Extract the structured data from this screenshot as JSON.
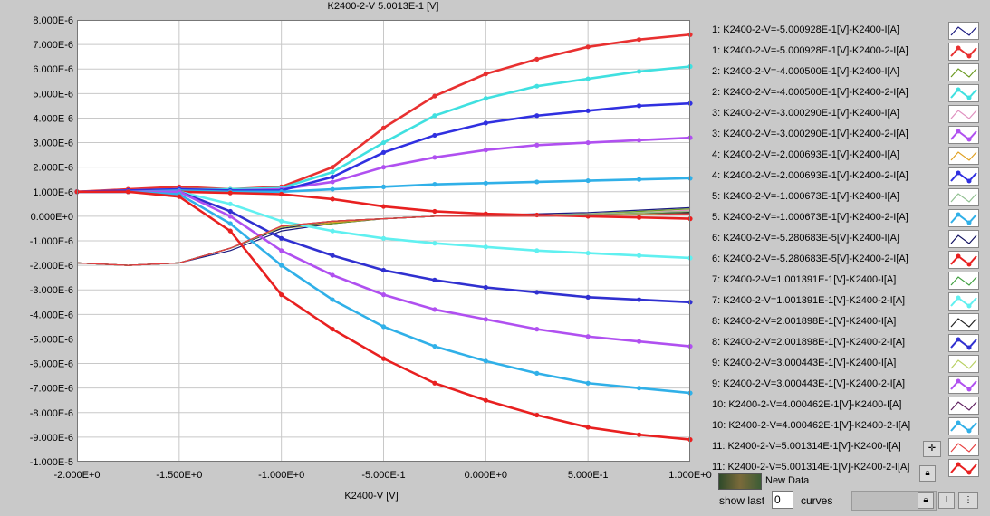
{
  "chart_data": {
    "type": "line",
    "title": "K2400-2-V 5.0013E-1 [V]",
    "xlabel": "K2400-V  [V]",
    "ylabel": "",
    "xlim": [
      -2.0,
      1.0
    ],
    "ylim": [
      -1e-05,
      8e-06
    ],
    "grid": true,
    "legend_position": "right",
    "x_ticks": [
      "-2.000E+0",
      "-1.500E+0",
      "-1.000E+0",
      "-5.000E-1",
      "0.000E+0",
      "5.000E-1",
      "1.000E+0"
    ],
    "y_ticks": [
      "8.000E-6",
      "7.000E-6",
      "6.000E-6",
      "5.000E-6",
      "4.000E-6",
      "3.000E-6",
      "2.000E-6",
      "1.000E-6",
      "0.000E+0",
      "-1.000E-6",
      "-2.000E-6",
      "-3.000E-6",
      "-4.000E-6",
      "-5.000E-6",
      "-6.000E-6",
      "-7.000E-6",
      "-8.000E-6",
      "-9.000E-6",
      "-1.000E-5"
    ],
    "x": [
      -2.0,
      -1.75,
      -1.5,
      -1.25,
      -1.0,
      -0.75,
      -0.5,
      -0.25,
      0.0,
      0.25,
      0.5,
      0.75,
      1.0
    ],
    "series": [
      {
        "name": "1: K2400-2-V=-5.000928E-1[V]-K2400-I[A]",
        "color": "#1a1a80",
        "values": [
          -1.9e-06,
          -2e-06,
          -1.9e-06,
          -1.4e-06,
          -6e-07,
          -3e-07,
          -1e-07,
          0.0,
          5e-08,
          1e-07,
          1.5e-07,
          2.5e-07,
          3.5e-07
        ]
      },
      {
        "name": "1: K2400-2-V=-5.000928E-1[V]-K2400-2-I[A]",
        "color": "#e83030",
        "values": [
          1e-06,
          1.1e-06,
          1.2e-06,
          1.1e-06,
          1.2e-06,
          2e-06,
          3.6e-06,
          4.9e-06,
          5.8e-06,
          6.4e-06,
          6.9e-06,
          7.2e-06,
          7.4e-06
        ]
      },
      {
        "name": "2: K2400-2-V=-4.000500E-1[V]-K2400-I[A]",
        "color": "#6a9a20",
        "values": [
          -1.9e-06,
          -2e-06,
          -1.9e-06,
          -1.3e-06,
          -5e-07,
          -3e-07,
          -1e-07,
          0.0,
          0.0,
          5e-08,
          1e-07,
          2e-07,
          3e-07
        ]
      },
      {
        "name": "2: K2400-2-V=-4.000500E-1[V]-K2400-2-I[A]",
        "color": "#40e0e0",
        "values": [
          1e-06,
          1.05e-06,
          1.1e-06,
          1.1e-06,
          1.15e-06,
          1.8e-06,
          3e-06,
          4.1e-06,
          4.8e-06,
          5.3e-06,
          5.6e-06,
          5.9e-06,
          6.1e-06
        ]
      },
      {
        "name": "3: K2400-2-V=-3.000290E-1[V]-K2400-I[A]",
        "color": "#e090c0",
        "values": [
          -1.9e-06,
          -2e-06,
          -1.9e-06,
          -1.3e-06,
          -5e-07,
          -2.5e-07,
          -1e-07,
          0.0,
          0.0,
          5e-08,
          1e-07,
          1.5e-07,
          2.5e-07
        ]
      },
      {
        "name": "3: K2400-2-V=-3.000290E-1[V]-K2400-2-I[A]",
        "color": "#b050f0",
        "values": [
          1e-06,
          1.05e-06,
          1.1e-06,
          1.05e-06,
          1.1e-06,
          1.4e-06,
          2e-06,
          2.4e-06,
          2.7e-06,
          2.9e-06,
          3e-06,
          3.1e-06,
          3.2e-06
        ]
      },
      {
        "name": "4: K2400-2-V=-2.000693E-1[V]-K2400-I[A]",
        "color": "#e0a020",
        "values": [
          -1.9e-06,
          -2e-06,
          -1.9e-06,
          -1.3e-06,
          -5e-07,
          -2.5e-07,
          -1e-07,
          0.0,
          0.0,
          5e-08,
          1e-07,
          1.5e-07,
          2e-07
        ]
      },
      {
        "name": "4: K2400-2-V=-2.000693E-1[V]-K2400-2-I[A]",
        "color": "#3030e0",
        "values": [
          1e-06,
          1.05e-06,
          1.1e-06,
          1.05e-06,
          1.05e-06,
          1.6e-06,
          2.6e-06,
          3.3e-06,
          3.8e-06,
          4.1e-06,
          4.3e-06,
          4.5e-06,
          4.6e-06
        ]
      },
      {
        "name": "5: K2400-2-V=-1.000673E-1[V]-K2400-I[A]",
        "color": "#90c090",
        "values": [
          -1.9e-06,
          -2e-06,
          -1.9e-06,
          -1.3e-06,
          -5e-07,
          -2e-07,
          -1e-07,
          0.0,
          0.0,
          5e-08,
          1e-07,
          1.5e-07,
          2e-07
        ]
      },
      {
        "name": "5: K2400-2-V=-1.000673E-1[V]-K2400-2-I[A]",
        "color": "#30b0e8",
        "values": [
          1e-06,
          1e-06,
          1.05e-06,
          1e-06,
          1e-06,
          1.1e-06,
          1.2e-06,
          1.3e-06,
          1.35e-06,
          1.4e-06,
          1.45e-06,
          1.5e-06,
          1.55e-06
        ]
      },
      {
        "name": "6: K2400-2-V=-5.280683E-5[V]-K2400-I[A]",
        "color": "#101060",
        "values": [
          -1.9e-06,
          -2e-06,
          -1.9e-06,
          -1.3e-06,
          -5e-07,
          -2e-07,
          -1e-07,
          0.0,
          0.0,
          5e-08,
          5e-08,
          1e-07,
          1.5e-07
        ]
      },
      {
        "name": "6: K2400-2-V=-5.280683E-5[V]-K2400-2-I[A]",
        "color": "#e82020",
        "values": [
          1e-06,
          1e-06,
          1e-06,
          9.5e-07,
          9e-07,
          7e-07,
          4e-07,
          2e-07,
          1e-07,
          5e-08,
          0.0,
          -5e-08,
          -1e-07
        ]
      },
      {
        "name": "7: K2400-2-V=1.001391E-1[V]-K2400-I[A]",
        "color": "#40a040",
        "values": [
          -1.9e-06,
          -2e-06,
          -1.9e-06,
          -1.3e-06,
          -4.5e-07,
          -2e-07,
          -1e-07,
          0.0,
          0.0,
          0.0,
          5e-08,
          1e-07,
          1.5e-07
        ]
      },
      {
        "name": "7: K2400-2-V=1.001391E-1[V]-K2400-2-I[A]",
        "color": "#60f0f0",
        "values": [
          1e-06,
          1e-06,
          1e-06,
          5e-07,
          -2e-07,
          -6e-07,
          -9e-07,
          -1.1e-06,
          -1.25e-06,
          -1.4e-06,
          -1.5e-06,
          -1.6e-06,
          -1.7e-06
        ]
      },
      {
        "name": "8: K2400-2-V=2.001898E-1[V]-K2400-I[A]",
        "color": "#202020",
        "values": [
          -1.9e-06,
          -2e-06,
          -1.9e-06,
          -1.3e-06,
          -4.5e-07,
          -2e-07,
          -1e-07,
          0.0,
          0.0,
          0.0,
          5e-08,
          1e-07,
          1.5e-07
        ]
      },
      {
        "name": "8: K2400-2-V=2.001898E-1[V]-K2400-2-I[A]",
        "color": "#3030d0",
        "values": [
          1e-06,
          1e-06,
          1e-06,
          2e-07,
          -9e-07,
          -1.6e-06,
          -2.2e-06,
          -2.6e-06,
          -2.9e-06,
          -3.1e-06,
          -3.3e-06,
          -3.4e-06,
          -3.5e-06
        ]
      },
      {
        "name": "9: K2400-2-V=3.000443E-1[V]-K2400-I[A]",
        "color": "#b8d060",
        "values": [
          -1.9e-06,
          -2e-06,
          -1.9e-06,
          -1.3e-06,
          -4.5e-07,
          -2e-07,
          -1e-07,
          0.0,
          0.0,
          0.0,
          5e-08,
          1e-07,
          1e-07
        ]
      },
      {
        "name": "9: K2400-2-V=3.000443E-1[V]-K2400-2-I[A]",
        "color": "#b050f0",
        "values": [
          1e-06,
          1e-06,
          1e-06,
          0.0,
          -1.4e-06,
          -2.4e-06,
          -3.2e-06,
          -3.8e-06,
          -4.2e-06,
          -4.6e-06,
          -4.9e-06,
          -5.1e-06,
          -5.3e-06
        ]
      },
      {
        "name": "10: K2400-2-V=4.000462E-1[V]-K2400-I[A]",
        "color": "#602060",
        "values": [
          -1.9e-06,
          -2e-06,
          -1.9e-06,
          -1.3e-06,
          -4e-07,
          -2e-07,
          -1e-07,
          0.0,
          0.0,
          0.0,
          5e-08,
          5e-08,
          1e-07
        ]
      },
      {
        "name": "10: K2400-2-V=4.000462E-1[V]-K2400-2-I[A]",
        "color": "#30b0e8",
        "values": [
          1e-06,
          1e-06,
          9e-07,
          -3e-07,
          -2e-06,
          -3.4e-06,
          -4.5e-06,
          -5.3e-06,
          -5.9e-06,
          -6.4e-06,
          -6.8e-06,
          -7e-06,
          -7.2e-06
        ]
      },
      {
        "name": "11: K2400-2-V=5.001314E-1[V]-K2400-I[A]",
        "color": "#e84040",
        "values": [
          -1.9e-06,
          -2e-06,
          -1.9e-06,
          -1.3e-06,
          -4e-07,
          -2e-07,
          -1e-07,
          0.0,
          0.0,
          0.0,
          5e-08,
          5e-08,
          1e-07
        ]
      },
      {
        "name": "11: K2400-2-V=5.001314E-1[V]-K2400-2-I[A]",
        "color": "#e82020",
        "values": [
          1e-06,
          1e-06,
          8e-07,
          -6e-07,
          -3.2e-06,
          -4.6e-06,
          -5.8e-06,
          -6.8e-06,
          -7.5e-06,
          -8.1e-06,
          -8.6e-06,
          -8.9e-06,
          -9.1e-06
        ]
      }
    ]
  },
  "legend": {
    "items": [
      "1: K2400-2-V=-5.000928E-1[V]-K2400-I[A]",
      "1: K2400-2-V=-5.000928E-1[V]-K2400-2-I[A]",
      "2: K2400-2-V=-4.000500E-1[V]-K2400-I[A]",
      "2: K2400-2-V=-4.000500E-1[V]-K2400-2-I[A]",
      "3: K2400-2-V=-3.000290E-1[V]-K2400-I[A]",
      "3: K2400-2-V=-3.000290E-1[V]-K2400-2-I[A]",
      "4: K2400-2-V=-2.000693E-1[V]-K2400-I[A]",
      "4: K2400-2-V=-2.000693E-1[V]-K2400-2-I[A]",
      "5: K2400-2-V=-1.000673E-1[V]-K2400-I[A]",
      "5: K2400-2-V=-1.000673E-1[V]-K2400-2-I[A]",
      "6: K2400-2-V=-5.280683E-5[V]-K2400-I[A]",
      "6: K2400-2-V=-5.280683E-5[V]-K2400-2-I[A]",
      "7: K2400-2-V=1.001391E-1[V]-K2400-I[A]",
      "7: K2400-2-V=1.001391E-1[V]-K2400-2-I[A]",
      "8: K2400-2-V=2.001898E-1[V]-K2400-I[A]",
      "8: K2400-2-V=2.001898E-1[V]-K2400-2-I[A]",
      "9: K2400-2-V=3.000443E-1[V]-K2400-I[A]",
      "9: K2400-2-V=3.000443E-1[V]-K2400-2-I[A]",
      "10: K2400-2-V=4.000462E-1[V]-K2400-I[A]",
      "10: K2400-2-V=4.000462E-1[V]-K2400-2-I[A]",
      "11: K2400-2-V=5.001314E-1[V]-K2400-I[A]",
      "11: K2400-2-V=5.001314E-1[V]-K2400-2-I[A]"
    ]
  },
  "controls": {
    "new_data_label": "New Data",
    "show_last_label": "show last",
    "show_last_value": "0",
    "curves_label": "curves",
    "zoom_icon": "crosshair-icon",
    "lock_icon": "lock-icon"
  }
}
